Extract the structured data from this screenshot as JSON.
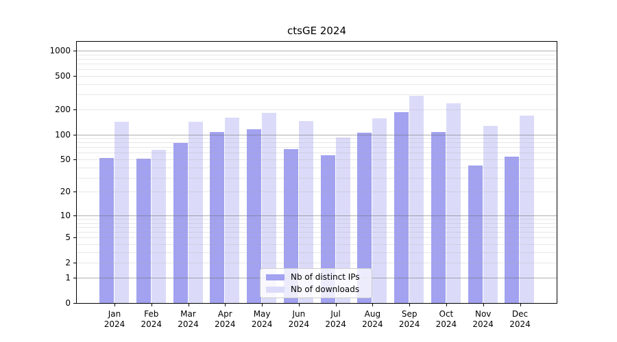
{
  "title": "ctsGE 2024",
  "colors": {
    "distinct_ips": "#a2a2f0",
    "downloads": "#dbdbf9",
    "grid_major": "#b4b4b4",
    "grid_minor": "#e7e7e7",
    "axis": "#000000"
  },
  "legend": {
    "items": [
      {
        "label": "Nb of distinct IPs",
        "color_key": "distinct_ips"
      },
      {
        "label": "Nb of downloads",
        "color_key": "downloads"
      }
    ]
  },
  "chart_data": {
    "type": "bar",
    "title": "ctsGE 2024",
    "categories": [
      "Jan 2024",
      "Feb 2024",
      "Mar 2024",
      "Apr 2024",
      "May 2024",
      "Jun 2024",
      "Jul 2024",
      "Aug 2024",
      "Sep 2024",
      "Oct 2024",
      "Nov 2024",
      "Dec 2024"
    ],
    "series": [
      {
        "name": "Nb of distinct IPs",
        "values": [
          52,
          51,
          79,
          106,
          115,
          66,
          56,
          104,
          184,
          107,
          42,
          54
        ]
      },
      {
        "name": "Nb of downloads",
        "values": [
          141,
          65,
          142,
          160,
          181,
          144,
          91,
          156,
          290,
          236,
          126,
          168
        ]
      }
    ],
    "yscale": "log1p",
    "ylim": [
      0,
      1276
    ],
    "yticks": [
      0,
      1,
      2,
      5,
      10,
      20,
      50,
      100,
      200,
      500,
      1000
    ],
    "xlabel": "",
    "ylabel": "",
    "grid": true,
    "legend_position": "lower center"
  }
}
